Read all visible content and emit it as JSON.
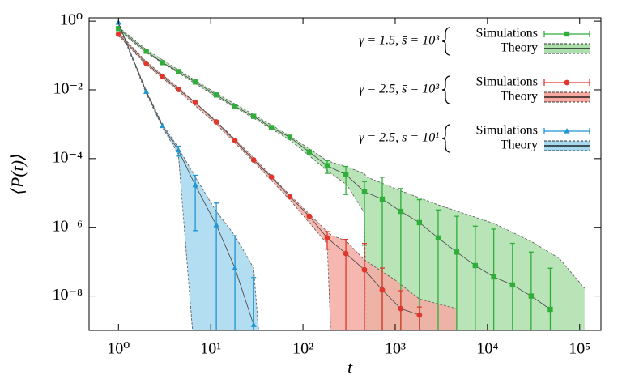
{
  "chart_data": {
    "type": "line",
    "xlabel": "t",
    "ylabel": "⟨P(t)⟩",
    "log_x": true,
    "log_y": true,
    "xlim": [
      0.48,
      170000
    ],
    "ylim": [
      1e-09,
      1.25
    ],
    "xticks": [
      {
        "value": 1,
        "label": "10⁰"
      },
      {
        "value": 10,
        "label": "10¹"
      },
      {
        "value": 100,
        "label": "10²"
      },
      {
        "value": 1000,
        "label": "10³"
      },
      {
        "value": 10000,
        "label": "10⁴"
      },
      {
        "value": 100000,
        "label": "10⁵"
      }
    ],
    "yticks": [
      {
        "value": 1,
        "label": "10⁰"
      },
      {
        "value": 0.01,
        "label": "10⁻²"
      },
      {
        "value": 0.0001,
        "label": "10⁻⁴"
      },
      {
        "value": 1e-06,
        "label": "10⁻⁶"
      },
      {
        "value": 1e-08,
        "label": "10⁻⁸"
      }
    ],
    "legend": "upper right",
    "series": [
      {
        "group": "γ = 1.5, s̄ = 10³",
        "name": "Simulations",
        "theory_name": "Theory",
        "color": "#2fae3a",
        "band_color": "#acdfab",
        "marker": "square",
        "x": [
          1,
          2,
          3,
          4.46,
          6.8,
          11.5,
          18.3,
          29.2,
          45.5,
          72,
          117,
          183,
          292,
          464,
          724,
          1150,
          1830,
          2920,
          4640,
          7380,
          11700,
          18700,
          29800,
          48000
        ],
        "values": [
          0.61,
          0.133,
          0.062,
          0.034,
          0.0169,
          0.0071,
          0.0033,
          0.0017,
          0.0008,
          0.00042,
          0.000156,
          6.2e-05,
          3.4e-05,
          1.08e-05,
          6.6e-06,
          2.9e-06,
          1.37e-06,
          4.9e-07,
          1.9e-07,
          7.7e-08,
          3.6e-08,
          2.1e-08,
          1e-08,
          4.1e-09
        ],
        "errors": [
          0,
          0,
          0,
          0,
          0,
          0,
          0,
          0,
          0,
          0,
          1e-05,
          2.5e-05,
          2.5e-05,
          1.05e-05,
          2.2e-05,
          1.06e-05,
          5e-06,
          2.7e-06,
          1.9e-06,
          1e-06,
          8.5e-07,
          3.2e-07,
          1.8e-07,
          6e-08
        ],
        "theory": {
          "x": [
            1,
            2,
            4.46,
            11.5,
            29.2,
            72,
            183,
            300,
            464,
            493,
            1150,
            2920,
            11700,
            29800,
            60000,
            113000
          ],
          "upper": [
            0.68,
            0.149,
            0.038,
            0.0079,
            0.0019,
            0.00046,
            8.6e-05,
            5.8e-05,
            3.6e-05,
            2.9e-05,
            1.15e-05,
            4.5e-06,
            1.3e-06,
            3.9e-07,
            1.25e-07,
            1.67e-08
          ],
          "lower": [
            0.55,
            0.12,
            0.031,
            0.0063,
            0.0015,
            0.00035,
            4.5e-05,
            1.7e-05,
            2.6e-06,
            1e-10,
            1e-10,
            1e-10,
            1e-10,
            1e-10,
            1e-10,
            1e-10
          ]
        }
      },
      {
        "group": "γ = 2.5, s̄ = 10³",
        "name": "Simulations",
        "theory_name": "Theory",
        "color": "#e0362c",
        "band_color": "#f5aaa2",
        "marker": "circle",
        "x": [
          1,
          2,
          3,
          4.46,
          6.8,
          11.5,
          18.3,
          29.2,
          45.5,
          72,
          117,
          183,
          292,
          464,
          724,
          1150,
          1830
        ],
        "values": [
          0.42,
          0.059,
          0.0247,
          0.0103,
          0.0043,
          0.00117,
          0.000335,
          9.1e-05,
          2.9e-05,
          7.8e-06,
          2.1e-06,
          4.9e-07,
          1.73e-07,
          5.8e-08,
          1.5e-08,
          4.3e-09,
          2.8e-09
        ],
        "errors": [
          0,
          0,
          0,
          0,
          0,
          0,
          0,
          0,
          0,
          0,
          0,
          2.6e-07,
          2.7e-07,
          2.8e-07,
          5e-08,
          1e-08,
          2e-09
        ],
        "theory": {
          "x": [
            1,
            2,
            4.46,
            11.5,
            29.2,
            72,
            183,
            207,
            292,
            464,
            1000,
            1830,
            4640
          ],
          "upper": [
            0.47,
            0.066,
            0.0115,
            0.00124,
            0.000107,
            8.7e-06,
            7.5e-07,
            5.7e-07,
            4.1e-07,
            1.12e-07,
            2.9e-08,
            8.2e-09,
            4.3e-09
          ],
          "lower": [
            0.375,
            0.053,
            0.0093,
            0.001,
            8.1e-05,
            6.3e-06,
            3.3e-07,
            1e-10,
            1e-10,
            1e-10,
            1e-10,
            1e-10,
            1e-10
          ]
        }
      },
      {
        "group": "γ = 2.5, s̄ = 10¹",
        "name": "Simulations",
        "theory_name": "Theory",
        "color": "#1f95d2",
        "band_color": "#a6d8ee",
        "marker": "triangle",
        "x": [
          1,
          2,
          3,
          4.46,
          6.8,
          11.5,
          18.3,
          29.2
        ],
        "values": [
          0.9,
          0.0088,
          0.00089,
          0.000174,
          1.68e-05,
          1.16e-06,
          6.5e-08,
          1.44e-09
        ],
        "errors": [
          0,
          0,
          0,
          5.6e-05,
          1.6e-05,
          3.9e-06,
          5e-07,
          3.3e-08
        ],
        "theory": {
          "x": [
            1,
            2,
            3,
            4.46,
            6.8,
            11.5,
            18.3,
            29.2,
            33
          ],
          "upper": [
            0.9,
            0.0093,
            0.001,
            0.000205,
            2.9e-05,
            2.9e-06,
            5.7e-07,
            6.5e-08,
            1e-09
          ],
          "lower": [
            0.8,
            0.0078,
            0.0008,
            0.000133,
            1e-10,
            1e-10,
            1e-10,
            1e-10,
            1e-10
          ]
        }
      }
    ]
  }
}
